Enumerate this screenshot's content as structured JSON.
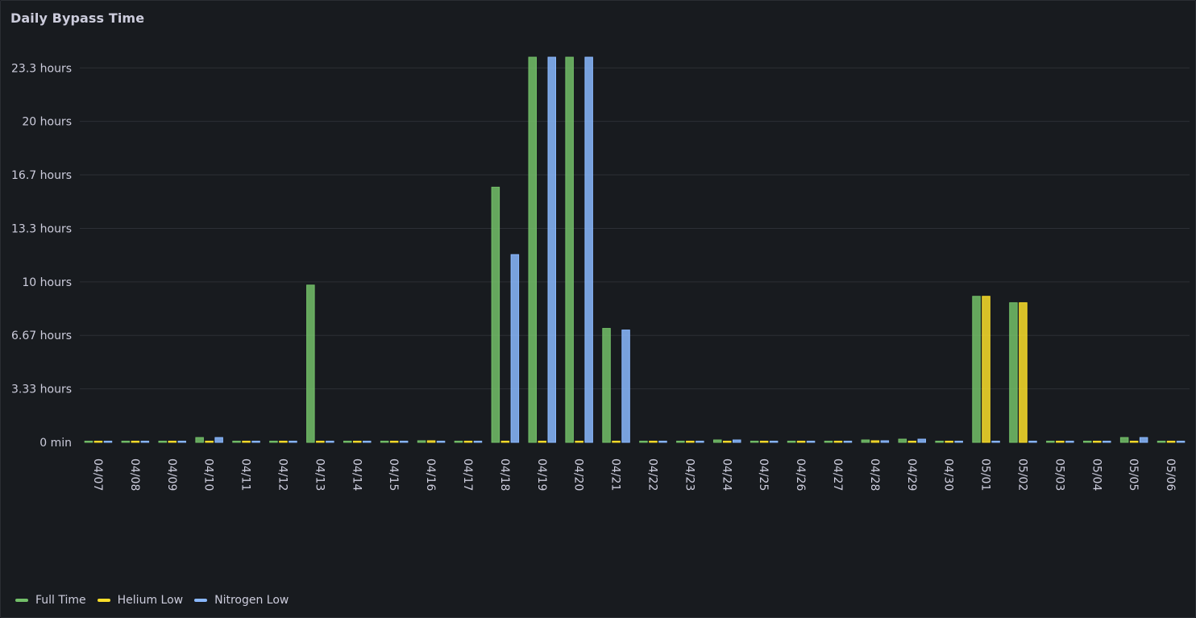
{
  "panel": {
    "title": "Daily Bypass Time"
  },
  "chart_data": {
    "type": "bar",
    "title": "Daily Bypass Time",
    "xlabel": "",
    "ylabel": "",
    "ylim": [
      0,
      24
    ],
    "grid": true,
    "legend_placement": "bottom-left",
    "y_ticks": [
      {
        "value": 0,
        "label": "0 min"
      },
      {
        "value": 3.333,
        "label": "3.33 hours"
      },
      {
        "value": 6.667,
        "label": "6.67 hours"
      },
      {
        "value": 10,
        "label": "10 hours"
      },
      {
        "value": 13.333,
        "label": "13.3 hours"
      },
      {
        "value": 16.667,
        "label": "16.7 hours"
      },
      {
        "value": 20,
        "label": "20 hours"
      },
      {
        "value": 23.333,
        "label": "23.3 hours"
      }
    ],
    "categories": [
      "04/07",
      "04/08",
      "04/09",
      "04/10",
      "04/11",
      "04/12",
      "04/13",
      "04/14",
      "04/15",
      "04/16",
      "04/17",
      "04/18",
      "04/19",
      "04/20",
      "04/21",
      "04/22",
      "04/23",
      "04/24",
      "04/25",
      "04/26",
      "04/27",
      "04/28",
      "04/29",
      "04/30",
      "05/01",
      "05/02",
      "05/03",
      "05/04",
      "05/05",
      "05/06"
    ],
    "series": [
      {
        "name": "Full Time",
        "color": "#73bf69",
        "values": [
          0.05,
          0.05,
          0.05,
          0.3,
          0.05,
          0.05,
          9.8,
          0.05,
          0.05,
          0.1,
          0.05,
          15.9,
          24,
          24,
          7.1,
          0.05,
          0.05,
          0.15,
          0.05,
          0.05,
          0.05,
          0.15,
          0.2,
          0.05,
          9.1,
          8.7,
          0.05,
          0.05,
          0.3,
          0.05
        ]
      },
      {
        "name": "Helium Low",
        "color": "#fade2a",
        "values": [
          0.05,
          0.05,
          0.05,
          0.05,
          0.05,
          0.05,
          0.05,
          0.05,
          0.05,
          0.1,
          0.05,
          0.05,
          0.05,
          0.05,
          0.05,
          0.05,
          0.05,
          0.05,
          0.05,
          0.05,
          0.05,
          0.1,
          0.05,
          0.05,
          9.1,
          8.7,
          0.05,
          0.05,
          0.05,
          0.05
        ]
      },
      {
        "name": "Nitrogen Low",
        "color": "#8ab8ff",
        "values": [
          0.05,
          0.05,
          0.05,
          0.3,
          0.05,
          0.05,
          0.05,
          0.05,
          0.05,
          0.05,
          0.05,
          11.7,
          24,
          24,
          7.0,
          0.05,
          0.05,
          0.15,
          0.05,
          0.05,
          0.05,
          0.1,
          0.2,
          0.05,
          0.05,
          0.05,
          0.05,
          0.05,
          0.3,
          0.05
        ]
      }
    ]
  }
}
